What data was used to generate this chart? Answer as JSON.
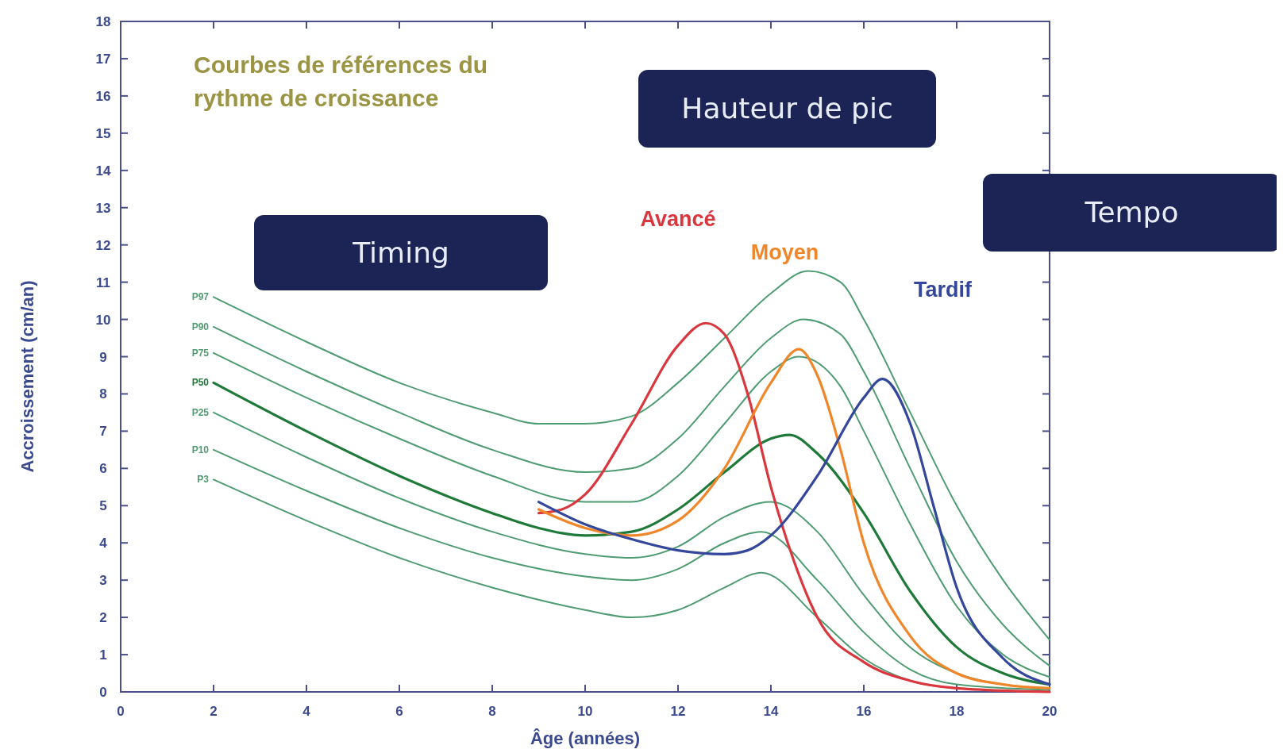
{
  "chart_data": {
    "type": "line",
    "title": "Courbes de références du rythme de croissance",
    "xlabel": "Âge (années)",
    "ylabel": "Accroissement (cm/an)",
    "xlim": [
      0,
      20
    ],
    "ylim": [
      0,
      18
    ],
    "xticks": [
      0,
      2,
      4,
      6,
      8,
      10,
      12,
      14,
      16,
      18,
      20
    ],
    "yticks": [
      0,
      1,
      2,
      3,
      4,
      5,
      6,
      7,
      8,
      9,
      10,
      11,
      12,
      13,
      14,
      15,
      16,
      17,
      18
    ],
    "grid": false,
    "marker": "none",
    "line_style": "solid",
    "annotations": [
      "Timing",
      "Hauteur de pic",
      "Tempo"
    ],
    "series": [
      {
        "name": "P97",
        "color": "#4f9c72",
        "x": [
          2,
          4,
          6,
          8,
          9,
          10,
          11,
          12,
          13,
          14,
          14.8,
          15.5,
          16,
          17,
          18,
          19,
          20
        ],
        "values": [
          10.6,
          9.4,
          8.3,
          7.5,
          7.2,
          7.2,
          7.4,
          8.3,
          9.5,
          10.7,
          11.3,
          11.0,
          10.0,
          7.5,
          5.0,
          3.0,
          1.4
        ]
      },
      {
        "name": "P90",
        "color": "#4f9c72",
        "x": [
          2,
          4,
          6,
          8,
          10,
          11,
          12,
          13,
          14,
          14.7,
          15.5,
          16,
          17,
          18,
          19,
          20
        ],
        "values": [
          9.8,
          8.6,
          7.5,
          6.5,
          5.9,
          6.0,
          6.8,
          8.2,
          9.5,
          10.0,
          9.6,
          8.6,
          6.0,
          3.5,
          1.8,
          0.7
        ]
      },
      {
        "name": "P75",
        "color": "#4f9c72",
        "x": [
          2,
          4,
          6,
          8,
          10,
          11,
          12,
          13,
          14,
          14.6,
          15.5,
          16,
          17,
          18,
          19,
          20
        ],
        "values": [
          9.1,
          7.9,
          6.8,
          5.8,
          5.1,
          5.1,
          5.8,
          7.2,
          8.6,
          9.0,
          8.2,
          7.0,
          4.5,
          2.3,
          1.0,
          0.4
        ]
      },
      {
        "name": "P50",
        "color": "#1f7a3a",
        "x": [
          2,
          4,
          6,
          8,
          9,
          10,
          11,
          12,
          13,
          14,
          14.4,
          15,
          16,
          17,
          18,
          19,
          20
        ],
        "values": [
          8.3,
          7.0,
          5.8,
          4.8,
          4.4,
          4.2,
          4.3,
          4.9,
          5.9,
          6.8,
          6.9,
          6.4,
          4.8,
          2.7,
          1.2,
          0.5,
          0.2
        ]
      },
      {
        "name": "P25",
        "color": "#4f9c72",
        "x": [
          2,
          4,
          6,
          8,
          10,
          11,
          12,
          13,
          14,
          15,
          16,
          17,
          18,
          19,
          20
        ],
        "values": [
          7.5,
          6.3,
          5.2,
          4.3,
          3.7,
          3.6,
          3.9,
          4.7,
          5.1,
          4.3,
          2.6,
          1.2,
          0.5,
          0.2,
          0.1
        ]
      },
      {
        "name": "P10",
        "color": "#4f9c72",
        "x": [
          2,
          4,
          6,
          8,
          10,
          11,
          12,
          13,
          13.8,
          15,
          16,
          17,
          18,
          20
        ],
        "values": [
          6.5,
          5.4,
          4.4,
          3.6,
          3.1,
          3.0,
          3.3,
          4.0,
          4.3,
          3.0,
          1.6,
          0.6,
          0.2,
          0.05
        ]
      },
      {
        "name": "P3",
        "color": "#4f9c72",
        "x": [
          2,
          4,
          6,
          8,
          10,
          11,
          12,
          13,
          13.8,
          15,
          16,
          17,
          18,
          20
        ],
        "values": [
          5.7,
          4.6,
          3.6,
          2.8,
          2.2,
          2.0,
          2.2,
          2.8,
          3.2,
          2.0,
          0.9,
          0.3,
          0.1,
          0
        ]
      },
      {
        "name": "Avancé",
        "color": "#d9363e",
        "x": [
          9,
          9.5,
          10,
          11,
          12,
          12.6,
          13,
          13.5,
          14,
          14.5,
          15,
          16,
          17,
          18,
          20
        ],
        "values": [
          4.8,
          4.9,
          5.3,
          7.2,
          9.3,
          9.9,
          9.6,
          8.0,
          5.5,
          3.5,
          2.0,
          0.8,
          0.3,
          0.1,
          0
        ]
      },
      {
        "name": "Moyen",
        "color": "#f0862a",
        "x": [
          9,
          10,
          11,
          12,
          13,
          14,
          14.6,
          15,
          15.5,
          16,
          17,
          18,
          19,
          20
        ],
        "values": [
          4.9,
          4.4,
          4.2,
          4.6,
          6.0,
          8.3,
          9.2,
          8.5,
          6.5,
          4.0,
          1.5,
          0.5,
          0.2,
          0.1
        ]
      },
      {
        "name": "Tardif",
        "color": "#34479a",
        "x": [
          9,
          10,
          11,
          12,
          13,
          13.5,
          14,
          15,
          16,
          16.4,
          17,
          17.5,
          18,
          19,
          20
        ],
        "values": [
          5.1,
          4.5,
          4.1,
          3.8,
          3.7,
          3.8,
          4.2,
          5.8,
          7.9,
          8.4,
          7.2,
          5.0,
          2.8,
          0.9,
          0.2
        ]
      }
    ]
  }
}
